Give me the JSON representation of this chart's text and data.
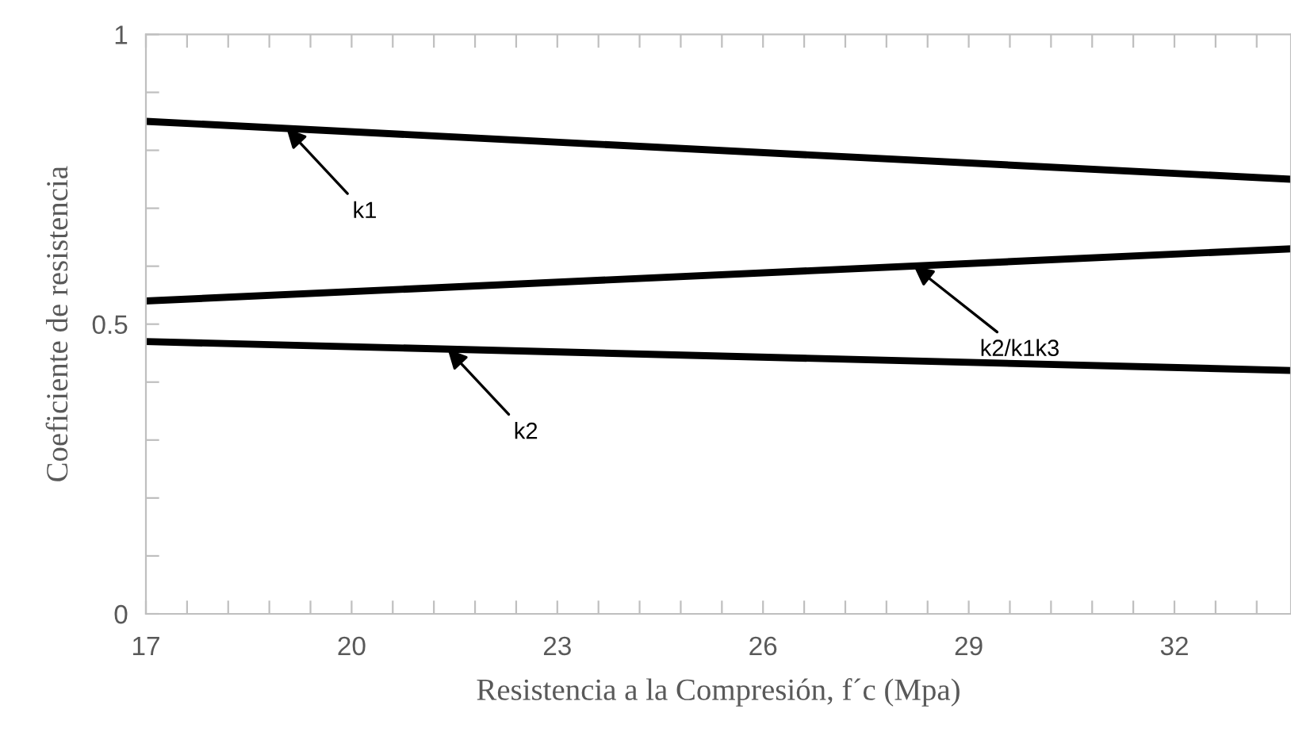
{
  "chart_data": {
    "type": "line",
    "xlabel": "Resistencia a la Compresión, f´c (Mpa)",
    "ylabel": "Coeficiente de resistencia",
    "x": [
      17,
      33.7
    ],
    "series": [
      {
        "color": "#000000",
        "values": [
          0.85,
          0.75
        ]
      },
      {
        "color": "#000000",
        "values": [
          0.54,
          0.63
        ]
      },
      {
        "color": "#000000",
        "values": [
          0.47,
          0.42
        ]
      }
    ],
    "xlim": [
      17,
      33.7
    ],
    "xticks": [
      17,
      {
        "value": 17.6,
        "label": null
      },
      {
        "value": 18.2,
        "label": null
      },
      {
        "value": 18.8,
        "label": null
      },
      {
        "value": 19.4,
        "label": null
      },
      20,
      {
        "value": 20.6,
        "label": null
      },
      {
        "value": 21.2,
        "label": null
      },
      {
        "value": 21.8,
        "label": null
      },
      {
        "value": 22.4,
        "label": null
      },
      23,
      {
        "value": 23.6,
        "label": null
      },
      {
        "value": 24.2,
        "label": null
      },
      {
        "value": 24.8,
        "label": null
      },
      {
        "value": 25.4,
        "label": null
      },
      26,
      {
        "value": 26.6,
        "label": null
      },
      {
        "value": 27.2,
        "label": null
      },
      {
        "value": 27.8,
        "label": null
      },
      {
        "value": 28.4,
        "label": null
      },
      29,
      {
        "value": 29.6,
        "label": null
      },
      {
        "value": 30.2,
        "label": null
      },
      {
        "value": 30.8,
        "label": null
      },
      {
        "value": 31.4,
        "label": null
      },
      32,
      {
        "value": 32.6,
        "label": null
      },
      {
        "value": 33.2,
        "label": null
      }
    ],
    "ylim": [
      0,
      1
    ],
    "yticks": [
      0,
      {
        "value": 0.1,
        "label": null
      },
      {
        "value": 0.2,
        "label": null
      },
      {
        "value": 0.3,
        "label": null
      },
      {
        "value": 0.4,
        "label": null
      },
      0.5,
      {
        "value": 0.6,
        "label": null
      },
      {
        "value": 0.7,
        "label": null
      },
      {
        "value": 0.8,
        "label": null
      },
      {
        "value": 0.9,
        "label": null
      },
      1
    ],
    "grid": false,
    "marker": "none",
    "line_style": "solid",
    "annotations": [
      {
        "text": "k1",
        "x": 19.05,
        "y": 0.838
      },
      {
        "text": "k2/k1k3",
        "x": 28.2,
        "y": 0.6
      },
      {
        "text": "k2",
        "x": 21.4,
        "y": 0.457
      }
    ]
  }
}
